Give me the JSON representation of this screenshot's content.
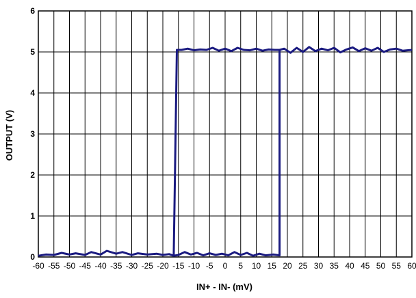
{
  "chart_data": {
    "type": "line",
    "xlabel": "IN+ - IN- (mV)",
    "ylabel": "OUTPUT (V)",
    "xlim": [
      -60,
      60
    ],
    "ylim": [
      0,
      6
    ],
    "x_ticks": [
      -60,
      -55,
      -50,
      -45,
      -40,
      -35,
      -30,
      -25,
      -20,
      -15,
      -10,
      -5,
      0,
      5,
      10,
      15,
      20,
      25,
      30,
      35,
      40,
      45,
      50,
      55,
      60
    ],
    "y_ticks": [
      0,
      1,
      2,
      3,
      4,
      5,
      6
    ],
    "grid": true,
    "line_color": "#1a1a80",
    "series": [
      {
        "name": "",
        "x": [
          -60,
          -57.5,
          -55,
          -52.5,
          -50,
          -48,
          -45,
          -43,
          -40,
          -38,
          -35,
          -33,
          -30,
          -28,
          -25,
          -22,
          -20,
          -18,
          -16.5,
          -15.5,
          -15.5,
          -14,
          -12,
          -10,
          -8,
          -6,
          -4,
          -2,
          0,
          2,
          4,
          6,
          8,
          10,
          12,
          14,
          16,
          17.5,
          17.5,
          15.5,
          13,
          11,
          9,
          7,
          5,
          3,
          1,
          -1,
          -3,
          -5,
          -7,
          -9,
          -11,
          -13,
          -15,
          -16.5
        ],
        "y": [
          0.03,
          0.06,
          0.05,
          0.1,
          0.06,
          0.09,
          0.05,
          0.12,
          0.06,
          0.15,
          0.08,
          0.12,
          0.05,
          0.09,
          0.06,
          0.08,
          0.05,
          0.07,
          0.03,
          5.05,
          5.05,
          5.05,
          5.08,
          5.04,
          5.06,
          5.05,
          5.1,
          5.03,
          5.08,
          5.02,
          5.1,
          5.05,
          5.04,
          5.08,
          5.03,
          5.06,
          5.05,
          5.05,
          0.04,
          0.06,
          0.04,
          0.08,
          0.03,
          0.1,
          0.05,
          0.12,
          0.04,
          0.08,
          0.05,
          0.09,
          0.04,
          0.1,
          0.06,
          0.12,
          0.05,
          0.03
        ]
      },
      {
        "name": "",
        "x": [
          17.5,
          19,
          21,
          23,
          25,
          27,
          29,
          31,
          33,
          35,
          37,
          39,
          41,
          43,
          45,
          47,
          49,
          51,
          53,
          55,
          57,
          60
        ],
        "y": [
          5.05,
          5.08,
          4.98,
          5.1,
          5.0,
          5.12,
          5.02,
          5.08,
          5.04,
          5.1,
          4.99,
          5.06,
          5.11,
          5.02,
          5.09,
          5.03,
          5.1,
          5.0,
          5.06,
          5.08,
          5.03,
          5.05
        ]
      }
    ]
  }
}
